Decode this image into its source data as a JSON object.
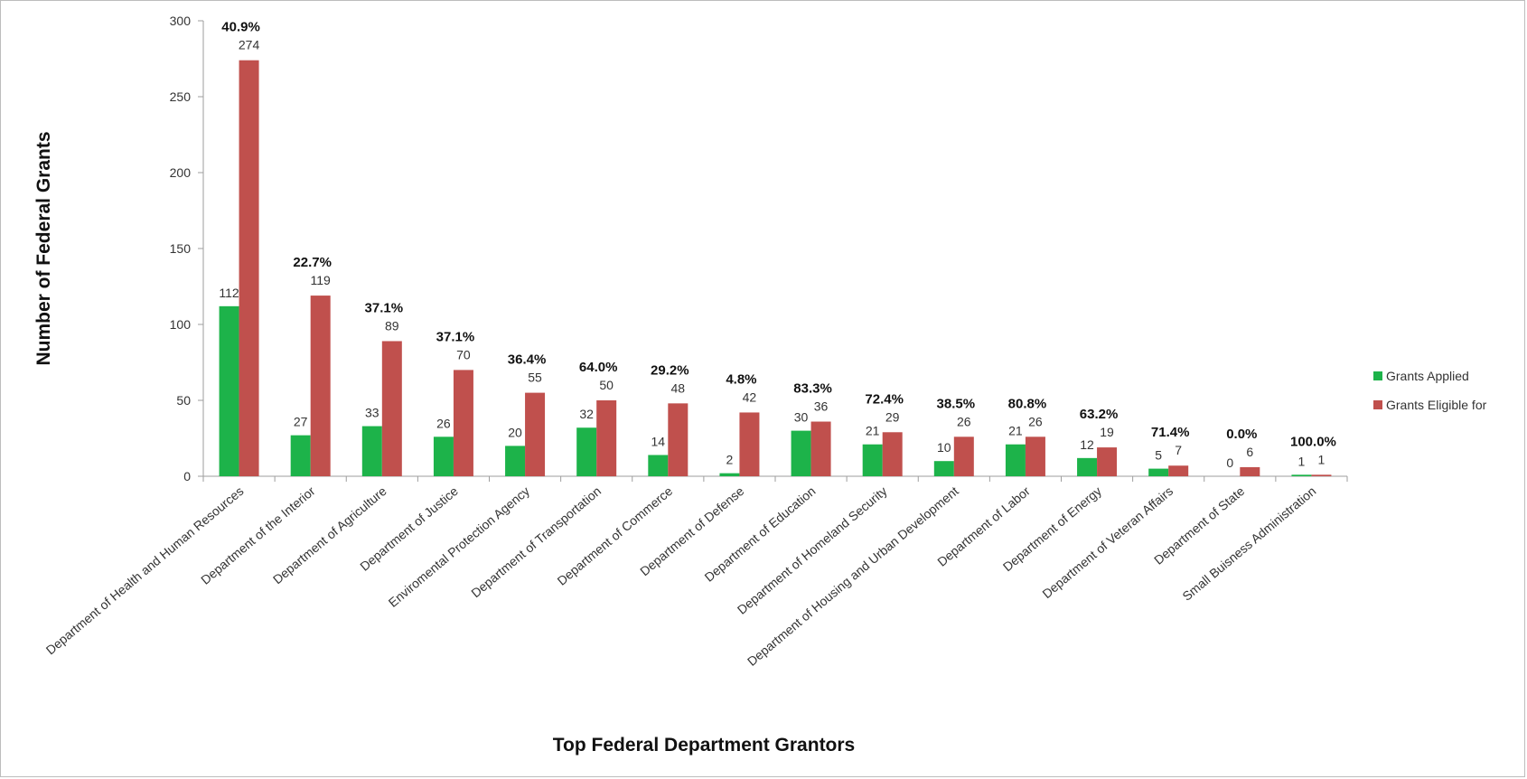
{
  "chart_data": {
    "type": "bar",
    "title": "",
    "xlabel": "Top Federal Department Grantors",
    "ylabel": "Number of Federal Grants",
    "ylim": [
      0,
      300
    ],
    "yticks": [
      "0",
      "50",
      "100",
      "150",
      "200",
      "250",
      "300"
    ],
    "legend_position": "right",
    "categories": [
      "Department of Health and Human Resources",
      "Department of the Interior",
      "Department of Agriculture",
      "Department of Justice",
      "Enviromental Protection Agency",
      "Department of Transportation",
      "Department of Commerce",
      "Department of Defense",
      "Department of Education",
      "Department of Homeland Security",
      "Department of Housing and Urban Development",
      "Department of Labor",
      "Department of Energy",
      "Department of Veteran Affairs",
      "Department of State",
      "Small Buisness Administration"
    ],
    "series": [
      {
        "name": "Grants Applied",
        "color": "#1db34a",
        "values": [
          112,
          27,
          33,
          26,
          20,
          32,
          14,
          2,
          30,
          21,
          10,
          21,
          12,
          5,
          0,
          1
        ],
        "labels": [
          "112",
          "27",
          "33",
          "26",
          "20",
          "32",
          "14",
          "2",
          "30",
          "21",
          "10",
          "21",
          "12",
          "5",
          "0",
          "1"
        ]
      },
      {
        "name": "Grants Eligible for",
        "color": "#c0504d",
        "values": [
          274,
          119,
          89,
          70,
          55,
          50,
          48,
          42,
          36,
          29,
          26,
          26,
          19,
          7,
          6,
          1
        ],
        "labels": [
          "274",
          "119",
          "89",
          "70",
          "55",
          "50",
          "48",
          "42",
          "36",
          "29",
          "26",
          "26",
          "19",
          "7",
          "6",
          "1"
        ]
      }
    ],
    "percent_labels": [
      "40.9%",
      "22.7%",
      "37.1%",
      "37.1%",
      "36.4%",
      "64.0%",
      "29.2%",
      "4.8%",
      "83.3%",
      "72.4%",
      "38.5%",
      "80.8%",
      "63.2%",
      "71.4%",
      "0.0%",
      "100.0%"
    ]
  }
}
